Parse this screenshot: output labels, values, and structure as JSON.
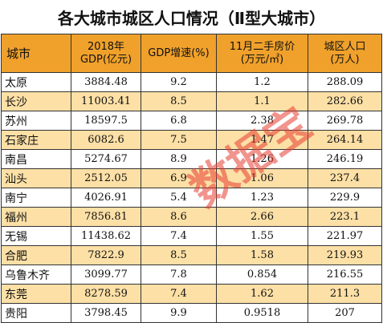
{
  "title": "各大城市城区人口情况（Ⅱ型大城市）",
  "headers": {
    "city": "城市",
    "gdp_line1": "2018年",
    "gdp_line2": "GDP(亿元)",
    "growth": "GDP增速(%)",
    "house_line1": "11月二手房价",
    "house_line2": "(万元/㎡)",
    "pop_line1": "城区人口",
    "pop_line2": "(万人)"
  },
  "rows": [
    {
      "city": "太原",
      "gdp": "3884.48",
      "growth": "9.2",
      "price": "1.2",
      "pop": "288.09"
    },
    {
      "city": "长沙",
      "gdp": "11003.41",
      "growth": "8.5",
      "price": "1.1",
      "pop": "282.66"
    },
    {
      "city": "苏州",
      "gdp": "18597.5",
      "growth": "6.8",
      "price": "2.38",
      "pop": "269.78"
    },
    {
      "city": "石家庄",
      "gdp": "6082.6",
      "growth": "7.5",
      "price": "1.47",
      "pop": "264.14"
    },
    {
      "city": "南昌",
      "gdp": "5274.67",
      "growth": "8.9",
      "price": "1.26",
      "pop": "246.19"
    },
    {
      "city": "汕头",
      "gdp": "2512.05",
      "growth": "6.9",
      "price": "1.06",
      "pop": "237.4"
    },
    {
      "city": "南宁",
      "gdp": "4026.91",
      "growth": "5.4",
      "price": "1.23",
      "pop": "229.9"
    },
    {
      "city": "福州",
      "gdp": "7856.81",
      "growth": "8.6",
      "price": "2.66",
      "pop": "223.1"
    },
    {
      "city": "无锡",
      "gdp": "11438.62",
      "growth": "7.4",
      "price": "1.55",
      "pop": "221.97"
    },
    {
      "city": "合肥",
      "gdp": "7822.9",
      "growth": "8.5",
      "price": "1.58",
      "pop": "219.93"
    },
    {
      "city": "乌鲁木齐",
      "gdp": "3099.77",
      "growth": "7.8",
      "price": "0.854",
      "pop": "216.55"
    },
    {
      "city": "东莞",
      "gdp": "8278.59",
      "growth": "7.4",
      "price": "1.62",
      "pop": "211.3"
    },
    {
      "city": "贵阳",
      "gdp": "3798.45",
      "growth": "9.9",
      "price": "0.9518",
      "pop": "207"
    }
  ],
  "watermark": "数据宝",
  "colors": {
    "header_bg": "#f0a12b",
    "stripe_bg": "#fde0a6",
    "watermark": "#e63c32"
  }
}
